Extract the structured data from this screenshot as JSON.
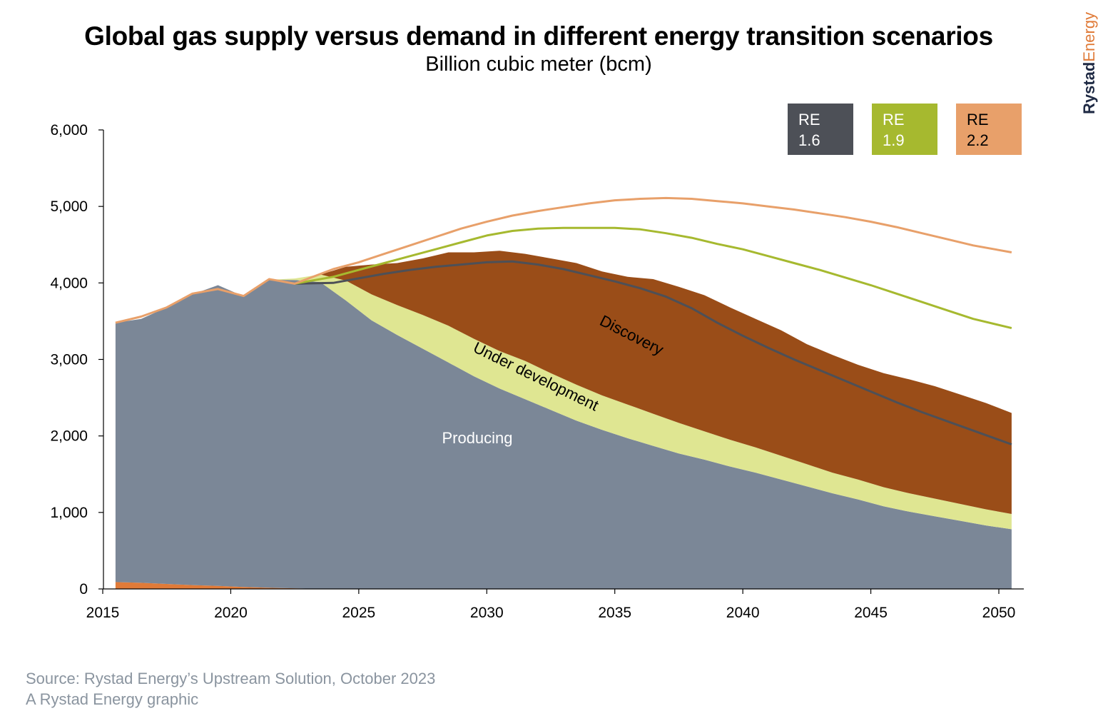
{
  "chart_data": {
    "type": "area",
    "title": "Global gas supply versus demand in different energy transition scenarios",
    "subtitle": "Billion cubic meter (bcm)",
    "x_ticks": [
      2015,
      2020,
      2025,
      2030,
      2035,
      2040,
      2045,
      2050
    ],
    "y_ticks": [
      0,
      1000,
      2000,
      3000,
      4000,
      5000,
      6000
    ],
    "y_tick_labels": [
      "0",
      "1,000",
      "2,000",
      "3,000",
      "4,000",
      "5,000",
      "6,000"
    ],
    "xlim": [
      2015,
      2051
    ],
    "ylim": [
      0,
      6000
    ],
    "grid": false,
    "stacked_areas": {
      "x": [
        2015.5,
        2016.5,
        2017.5,
        2018.5,
        2019.5,
        2020.5,
        2021.5,
        2022.5,
        2023.5,
        2024.5,
        2025.5,
        2026.5,
        2027.5,
        2028.5,
        2029.5,
        2030.5,
        2031.5,
        2032.5,
        2033.5,
        2034.5,
        2035.5,
        2036.5,
        2037.5,
        2038.5,
        2039.5,
        2040.5,
        2041.5,
        2042.5,
        2043.5,
        2044.5,
        2045.5,
        2046.5,
        2047.5,
        2048.5,
        2049.5,
        2050.5
      ],
      "series": [
        {
          "name": "",
          "color": "#e07b39",
          "values": [
            90,
            80,
            65,
            50,
            40,
            25,
            15,
            8,
            0,
            0,
            0,
            0,
            0,
            0,
            0,
            0,
            0,
            0,
            0,
            0,
            0,
            0,
            0,
            0,
            0,
            0,
            0,
            0,
            0,
            0,
            0,
            0,
            0,
            0,
            0,
            0
          ]
        },
        {
          "name": "Producing",
          "color": "#7b8797",
          "values": [
            3390,
            3450,
            3615,
            3800,
            3930,
            3800,
            4025,
            4030,
            4010,
            3770,
            3510,
            3320,
            3140,
            2960,
            2780,
            2620,
            2480,
            2340,
            2200,
            2080,
            1970,
            1870,
            1770,
            1690,
            1600,
            1520,
            1430,
            1340,
            1250,
            1170,
            1080,
            1010,
            950,
            890,
            830,
            780
          ]
        },
        {
          "name": "Under development",
          "color": "#dfe692",
          "values": [
            0,
            0,
            0,
            0,
            0,
            0,
            0,
            20,
            100,
            260,
            340,
            390,
            440,
            480,
            490,
            490,
            500,
            480,
            470,
            450,
            440,
            420,
            400,
            370,
            350,
            330,
            310,
            290,
            270,
            260,
            250,
            240,
            230,
            220,
            210,
            200
          ]
        },
        {
          "name": "Discovery",
          "color": "#9a4d18",
          "values": [
            0,
            0,
            0,
            0,
            0,
            0,
            0,
            0,
            0,
            180,
            390,
            550,
            740,
            960,
            1130,
            1310,
            1400,
            1500,
            1590,
            1620,
            1670,
            1760,
            1780,
            1780,
            1730,
            1680,
            1640,
            1570,
            1540,
            1500,
            1490,
            1490,
            1470,
            1430,
            1390,
            1320
          ]
        }
      ]
    },
    "demand_lines": [
      {
        "name": "RE 1.6",
        "color": "#4d5057",
        "x": [
          2022.5,
          2024,
          2025,
          2026,
          2027,
          2028,
          2029,
          2030,
          2031,
          2032,
          2033,
          2034,
          2035,
          2036,
          2037,
          2038,
          2039,
          2040,
          2041,
          2042,
          2043,
          2044,
          2045,
          2046,
          2047,
          2048,
          2049,
          2050.5
        ],
        "values": [
          3990,
          4000,
          4060,
          4120,
          4170,
          4210,
          4240,
          4270,
          4280,
          4240,
          4180,
          4100,
          4020,
          3930,
          3820,
          3670,
          3480,
          3310,
          3150,
          3000,
          2860,
          2720,
          2580,
          2440,
          2310,
          2190,
          2070,
          1890
        ]
      },
      {
        "name": "RE 1.9",
        "color": "#a6b92f",
        "x": [
          2022.5,
          2024,
          2025,
          2026,
          2027,
          2028,
          2029,
          2030,
          2031,
          2032,
          2033,
          2034,
          2035,
          2036,
          2037,
          2038,
          2039,
          2040,
          2041,
          2042,
          2043,
          2044,
          2045,
          2046,
          2047,
          2048,
          2049,
          2050.5
        ],
        "values": [
          3990,
          4080,
          4170,
          4260,
          4350,
          4440,
          4530,
          4620,
          4680,
          4710,
          4720,
          4720,
          4720,
          4700,
          4650,
          4590,
          4510,
          4440,
          4350,
          4260,
          4170,
          4070,
          3970,
          3860,
          3750,
          3640,
          3530,
          3410
        ]
      },
      {
        "name": "RE 2.2",
        "color": "#e8a06a",
        "x": [
          2015.5,
          2016.5,
          2017.5,
          2018.5,
          2019.5,
          2020.5,
          2021.5,
          2022.5,
          2024,
          2025,
          2026,
          2027,
          2028,
          2029,
          2030,
          2031,
          2032,
          2033,
          2034,
          2035,
          2036,
          2037,
          2038,
          2039,
          2040,
          2041,
          2042,
          2043,
          2044,
          2045,
          2046,
          2047,
          2048,
          2049,
          2050.5
        ],
        "values": [
          3480,
          3560,
          3680,
          3860,
          3920,
          3830,
          4050,
          3990,
          4180,
          4270,
          4380,
          4490,
          4600,
          4710,
          4800,
          4880,
          4940,
          4990,
          5040,
          5080,
          5100,
          5110,
          5100,
          5070,
          5040,
          5000,
          4960,
          4910,
          4860,
          4800,
          4730,
          4650,
          4570,
          4490,
          4400
        ]
      }
    ],
    "legend": {
      "placement": "top-right",
      "entries": [
        {
          "line1": "RE",
          "line2": "1.6",
          "bg": "#4d5057",
          "fg": "#ffffff"
        },
        {
          "line1": "RE",
          "line2": "1.9",
          "bg": "#a6b92f",
          "fg": "#ffffff"
        },
        {
          "line1": "RE",
          "line2": "2.2",
          "bg": "#e8a06a",
          "fg": "#000000"
        }
      ]
    },
    "annotations": {
      "producing": "Producing",
      "under_development": "Under development",
      "discovery": "Discovery"
    }
  },
  "brand": {
    "part1": "Rystad",
    "part2": "Energy",
    "color1": "#1f2a44",
    "color2": "#e07b39"
  },
  "footer": {
    "source": "Source: Rystad Energy’s Upstream Solution, October 2023",
    "credit": "A Rystad Energy graphic"
  }
}
